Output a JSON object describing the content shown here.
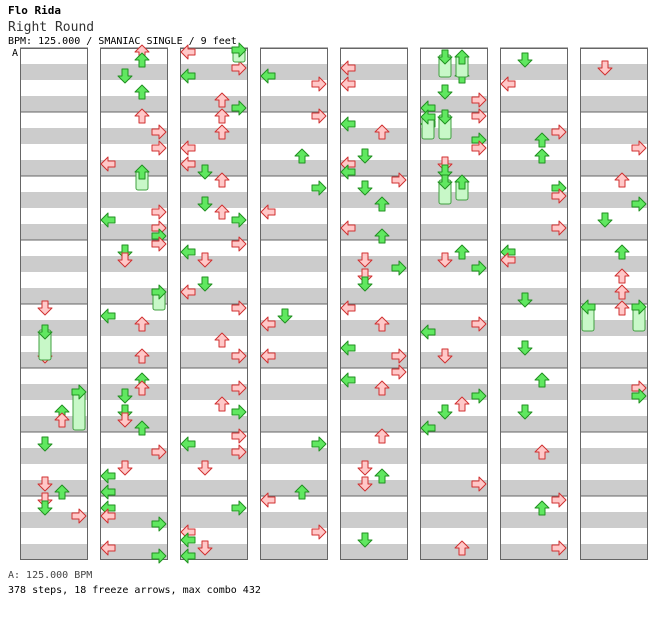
{
  "header": {
    "artist": "Flo Rida",
    "title": "Right Round",
    "meta": "BPM: 125.000 / SMANIAC SINGLE / 9 feet"
  },
  "bpm_marker": "A",
  "footer": {
    "bpm_legend": "A: 125.000 BPM",
    "stats": "378 steps, 18 freeze arrows, max combo 432"
  },
  "colors": {
    "red_fill": "#ffc8c8",
    "red_stroke": "#d03030",
    "green_fill": "#60e860",
    "green_stroke": "#209020",
    "freeze_fill": "#c8f8c8",
    "freeze_stroke": "#40a040",
    "stripe": "#cccccc",
    "measure_line": "#666666"
  },
  "chart_data": {
    "type": "stepchart",
    "columns": 8,
    "measures_per_column": 8,
    "lanes": [
      "left",
      "down",
      "up",
      "right"
    ],
    "steps": 378,
    "freeze_arrows": 18,
    "max_combo": 432
  }
}
